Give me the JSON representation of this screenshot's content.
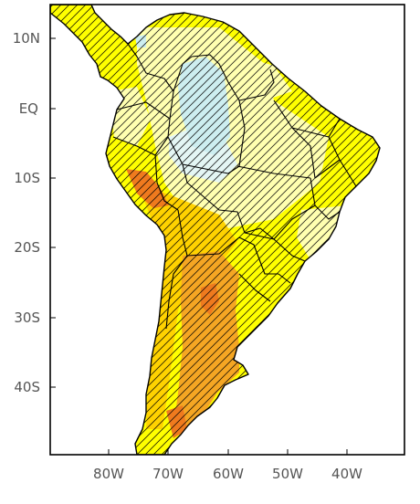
{
  "map": {
    "y_axis_labels": [
      "10N",
      "EQ",
      "10S",
      "20S",
      "30S",
      "40S"
    ],
    "x_axis_labels": [
      "80W",
      "70W",
      "60W",
      "50W",
      "40W"
    ],
    "colors": {
      "ocean": "#ffffff",
      "light_yellow": "#ffffb0",
      "yellow": "#ffff00",
      "gold": "#ffd200",
      "orange": "#f5a623",
      "dark_orange": "#ef7a1e",
      "light_blue": "#cdeef0",
      "pale_blue": "#e4f6f4",
      "hatch": "#000000",
      "border": "#000000"
    }
  }
}
